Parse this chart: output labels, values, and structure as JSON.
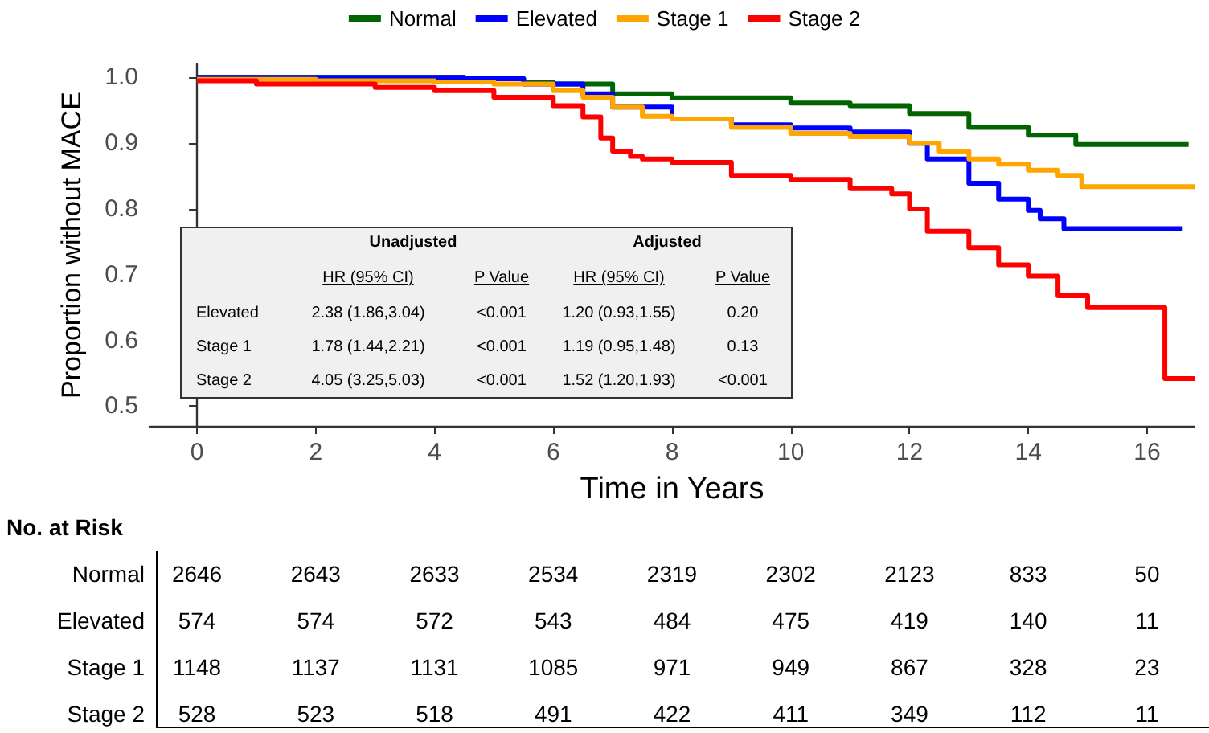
{
  "chart_data": {
    "type": "step",
    "xlabel": "Time in Years",
    "ylabel": "Proportion without MACE",
    "xlim": [
      -0.8,
      16.8
    ],
    "ylim": [
      0.47,
      1.02
    ],
    "xticks": [
      0,
      2,
      4,
      6,
      8,
      10,
      12,
      14,
      16
    ],
    "yticks": [
      0.5,
      0.6,
      0.7,
      0.8,
      0.9,
      {
        "value": 1.0,
        "label": "1.0"
      }
    ],
    "grid": false,
    "legend": "top",
    "marker": "none",
    "line_style": "solid",
    "series": [
      {
        "name": "Normal",
        "color": "#006400",
        "x": [
          0,
          4.5,
          5.5,
          6,
          7,
          8,
          10,
          11,
          12,
          13,
          14,
          14.8,
          16.7
        ],
        "values": [
          1.0,
          0.998,
          0.993,
          0.99,
          0.975,
          0.969,
          0.961,
          0.957,
          0.945,
          0.924,
          0.912,
          0.898,
          0.898
        ]
      },
      {
        "name": "Elevated",
        "color": "#0000ff",
        "x": [
          0,
          4.5,
          5.5,
          6.5,
          7,
          8,
          9,
          10,
          11,
          12,
          12.3,
          13,
          13.5,
          14,
          14.2,
          14.6,
          16.6
        ],
        "values": [
          1.0,
          0.998,
          0.99,
          0.975,
          0.955,
          0.937,
          0.928,
          0.923,
          0.917,
          0.9,
          0.876,
          0.839,
          0.815,
          0.798,
          0.785,
          0.77,
          0.77
        ]
      },
      {
        "name": "Stage 1",
        "color": "#ffa500",
        "x": [
          0,
          2,
          4,
          5,
          6,
          6.5,
          7,
          7.5,
          8,
          9,
          10,
          11,
          12,
          12.5,
          13,
          13.5,
          14,
          14.5,
          14.9,
          16.8
        ],
        "values": [
          0.997,
          0.995,
          0.993,
          0.99,
          0.98,
          0.97,
          0.955,
          0.941,
          0.937,
          0.924,
          0.915,
          0.91,
          0.9,
          0.888,
          0.876,
          0.868,
          0.859,
          0.851,
          0.834,
          0.834
        ]
      },
      {
        "name": "Stage 2",
        "color": "#ff0000",
        "x": [
          0,
          1,
          3,
          4,
          5,
          6,
          6.5,
          6.8,
          7,
          7.3,
          7.5,
          8,
          9,
          10,
          11,
          11.7,
          12,
          12.3,
          13,
          13.5,
          14,
          14.5,
          15,
          16.3,
          16.8
        ],
        "values": [
          0.995,
          0.99,
          0.985,
          0.98,
          0.97,
          0.957,
          0.94,
          0.908,
          0.888,
          0.88,
          0.876,
          0.871,
          0.851,
          0.845,
          0.831,
          0.823,
          0.8,
          0.766,
          0.741,
          0.715,
          0.698,
          0.668,
          0.65,
          0.542,
          0.542
        ]
      }
    ],
    "annotations": [
      "Unadjusted",
      "Adjusted",
      "HR (95% CI)",
      "P Value",
      "HR (95% CI)",
      "P Value",
      "Elevated",
      "2.38 (1.86,3.04)",
      "<0.001",
      "1.20 (0.93,1.55)",
      "0.20",
      "Stage 1",
      "1.78 (1.44,2.21)",
      "<0.001",
      "1.19 (0.95,1.48)",
      "0.13",
      "Stage 2",
      "4.05 (3.25,5.03)",
      "<0.001",
      "1.52 (1.20,1.93)",
      "<0.001",
      "No. at Risk",
      "Normal",
      "2646",
      "2643",
      "2633",
      "2534",
      "2319",
      "2302",
      "2123",
      "833",
      "50",
      "Elevated",
      "574",
      "574",
      "572",
      "543",
      "484",
      "475",
      "419",
      "140",
      "11",
      "Stage 1",
      "1148",
      "1137",
      "1131",
      "1085",
      "971",
      "949",
      "867",
      "328",
      "23",
      "Stage 2",
      "528",
      "523",
      "518",
      "491",
      "422",
      "411",
      "349",
      "112",
      "11"
    ]
  }
}
